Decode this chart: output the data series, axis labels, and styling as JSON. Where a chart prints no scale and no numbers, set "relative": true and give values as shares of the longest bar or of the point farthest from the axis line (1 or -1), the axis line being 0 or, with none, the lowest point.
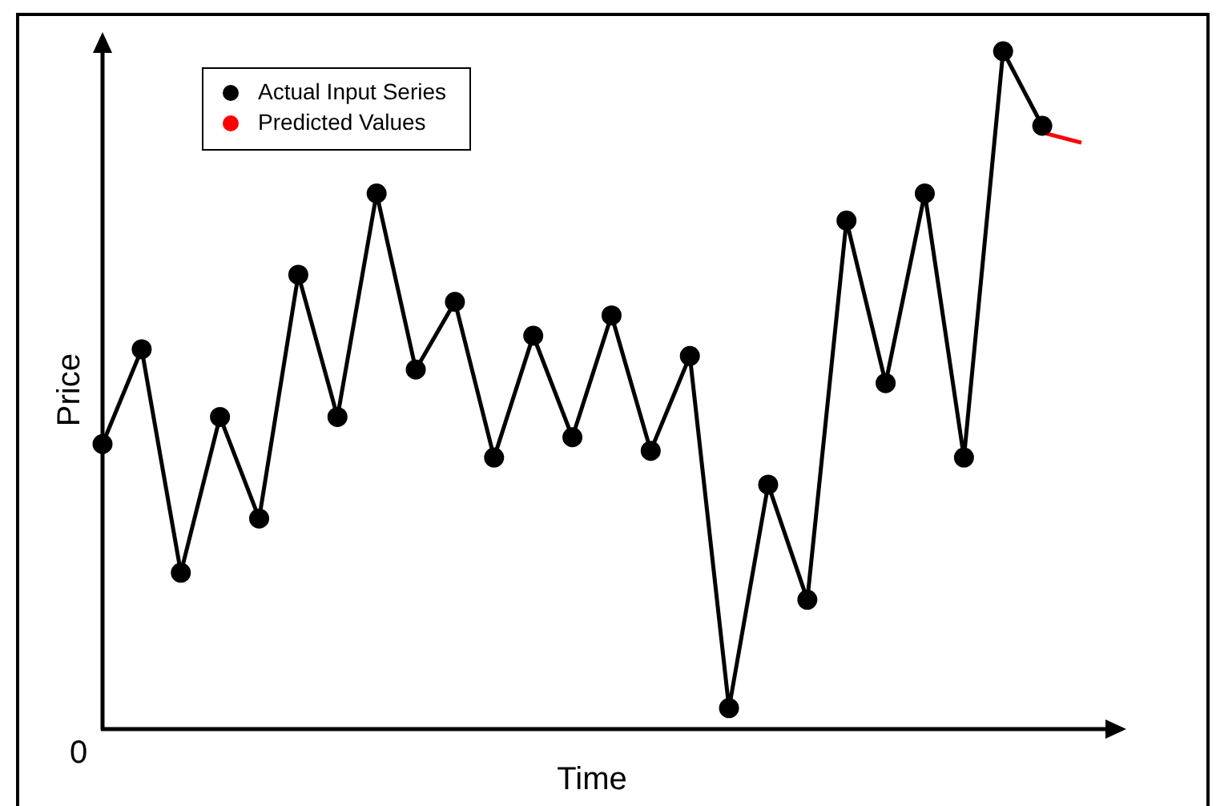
{
  "chart_data": {
    "type": "line",
    "xlabel": "Time",
    "ylabel": "Price",
    "relative": true,
    "grid": false,
    "legend": "top left",
    "annotations": [
      "0"
    ],
    "categories": [
      null,
      null,
      null,
      null,
      null,
      null,
      null,
      null,
      null,
      null,
      null,
      null,
      null,
      null,
      null,
      null,
      null,
      null,
      null,
      null,
      null,
      null,
      null,
      null,
      null,
      null
    ],
    "series": [
      {
        "name": "Actual Input Series",
        "color": "#000000",
        "marker": "circle",
        "values": [
          0.42,
          0.56,
          0.23,
          0.46,
          0.31,
          0.67,
          0.46,
          0.79,
          0.53,
          0.63,
          0.4,
          0.58,
          0.43,
          0.61,
          0.41,
          0.55,
          0.03,
          0.36,
          0.19,
          0.75,
          0.51,
          0.79,
          0.4,
          1,
          0.89,
          null
        ]
      },
      {
        "name": "Predicted Values",
        "color": "#ff0000",
        "marker": "none",
        "values": [
          null,
          null,
          null,
          null,
          null,
          null,
          null,
          null,
          null,
          null,
          null,
          null,
          null,
          null,
          null,
          null,
          null,
          null,
          null,
          null,
          null,
          null,
          null,
          null,
          0.88,
          0.865
        ]
      }
    ]
  }
}
